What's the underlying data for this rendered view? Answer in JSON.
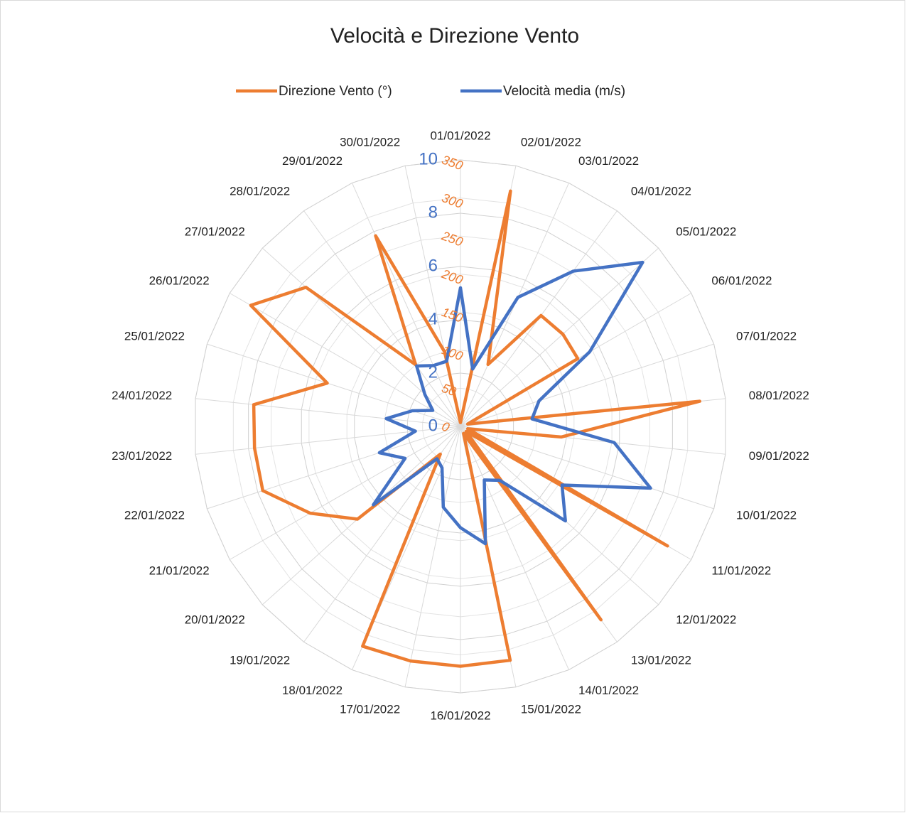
{
  "chart_data": {
    "type": "radar",
    "title": "Velocità e Direzione Vento",
    "categories": [
      "01/01/2022",
      "02/01/2022",
      "03/01/2022",
      "04/01/2022",
      "05/01/2022",
      "06/01/2022",
      "07/01/2022",
      "08/01/2022",
      "09/01/2022",
      "10/01/2022",
      "11/01/2022",
      "12/01/2022",
      "13/01/2022",
      "14/01/2022",
      "15/01/2022",
      "16/01/2022",
      "17/01/2022",
      "18/01/2022",
      "19/01/2022",
      "20/01/2022",
      "21/01/2022",
      "22/01/2022",
      "23/01/2022",
      "24/01/2022",
      "25/01/2022",
      "26/01/2022",
      "27/01/2022",
      "28/01/2022",
      "29/01/2022",
      "30/01/2022"
    ],
    "series": [
      {
        "name": "Direzione Vento  (°)",
        "color": "#ed7d31",
        "values": [
          5,
          316,
          89,
          180,
          181,
          178,
          10,
          316,
          133,
          10,
          314,
          10,
          314,
          10,
          314,
          315,
          315,
          316,
          45,
          182,
          228,
          273,
          272,
          273,
          184,
          318,
          273,
          100,
          274,
          100
        ]
      },
      {
        "name": "Velocità media (m/s)",
        "color": "#4472c4",
        "axis": "y2",
        "values": [
          5.2,
          2.2,
          5.3,
          7.2,
          9.2,
          5.6,
          3.1,
          2.7,
          5.8,
          7.5,
          4.4,
          5.3,
          2.5,
          2.2,
          4.5,
          3.8,
          3.1,
          1.7,
          1.5,
          4.4,
          2.4,
          3.2,
          1.7,
          2.8,
          1.9,
          1.2,
          1.8,
          2.8,
          2.5,
          2.5
        ]
      }
    ],
    "ylim": [
      0,
      350
    ],
    "yticks": [
      0,
      50,
      100,
      150,
      200,
      250,
      300,
      350
    ],
    "y2lim": [
      0,
      10
    ],
    "y2ticks": [
      0,
      2,
      4,
      6,
      8,
      10
    ],
    "grid": true,
    "legend": "top"
  }
}
